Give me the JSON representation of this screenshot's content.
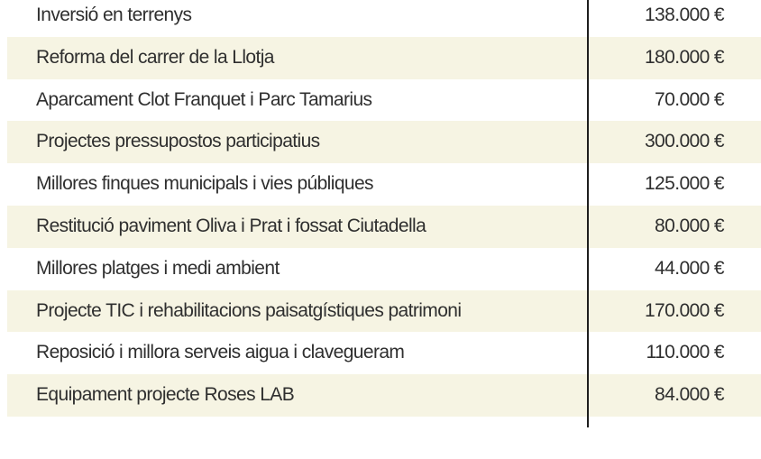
{
  "colors": {
    "row_alt_bg": "#f6f4e3",
    "divider": "#1e1e1e",
    "text": "#2f2f2f"
  },
  "rows": [
    {
      "label": "Inversió en terrenys",
      "value": "138.000 €"
    },
    {
      "label": "Reforma del carrer de la Llotja",
      "value": "180.000 €"
    },
    {
      "label": "Aparcament Clot Franquet i Parc Tamarius",
      "value": "70.000 €"
    },
    {
      "label": "Projectes pressupostos participatius",
      "value": "300.000 €"
    },
    {
      "label": "Millores finques municipals i vies públiques",
      "value": "125.000 €"
    },
    {
      "label": "Restitució paviment  Oliva i Prat i fossat Ciutadella",
      "value": "80.000 €"
    },
    {
      "label": "Millores platges i medi ambient",
      "value": "44.000 €"
    },
    {
      "label": "Projecte TIC i rehabilitacions paisatgístiques patrimoni",
      "value": "170.000 €"
    },
    {
      "label": "Reposició i millora serveis aigua i clavegueram",
      "value": "110.000 €"
    },
    {
      "label": "Equipament projecte Roses LAB",
      "value": "84.000 €"
    }
  ]
}
